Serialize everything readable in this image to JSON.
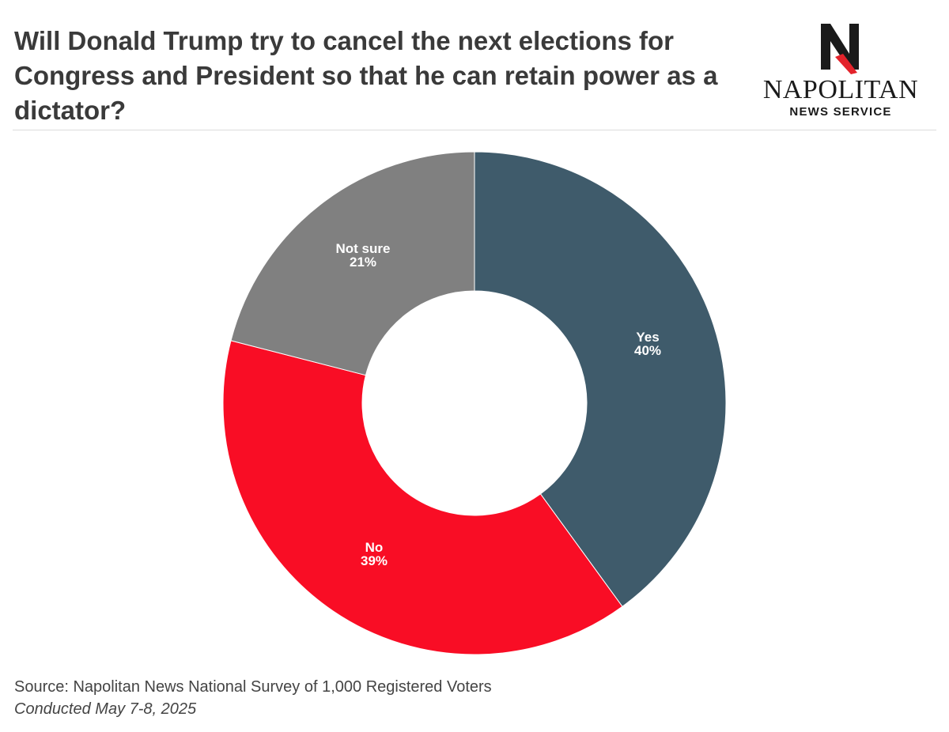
{
  "title": "Will Donald Trump try to cancel the next elections for Congress and President so that he can retain power as a dictator?",
  "logo": {
    "name": "NAPOLITAN",
    "sub": "NEWS SERVICE"
  },
  "chart_data": {
    "type": "pie",
    "subtype": "donut",
    "title": "Will Donald Trump try to cancel the next elections for Congress and President so that he can retain power as a dictator?",
    "labels": [
      "Yes",
      "No",
      "Not sure"
    ],
    "values": [
      40,
      39,
      21
    ],
    "value_labels": [
      "40%",
      "39%",
      "21%"
    ],
    "colors": [
      "#3f5b6b",
      "#f90d25",
      "#808080"
    ],
    "start": "12 o'clock, clockwise",
    "legend": "none (labels on slices)"
  },
  "footer": {
    "source": "Source: Napolitan News National Survey of 1,000 Registered Voters",
    "date": "Conducted May 7-8, 2025"
  },
  "colors": {
    "title": "#3a3a3a",
    "footer": "#444444",
    "logo_red": "#e3232b"
  }
}
